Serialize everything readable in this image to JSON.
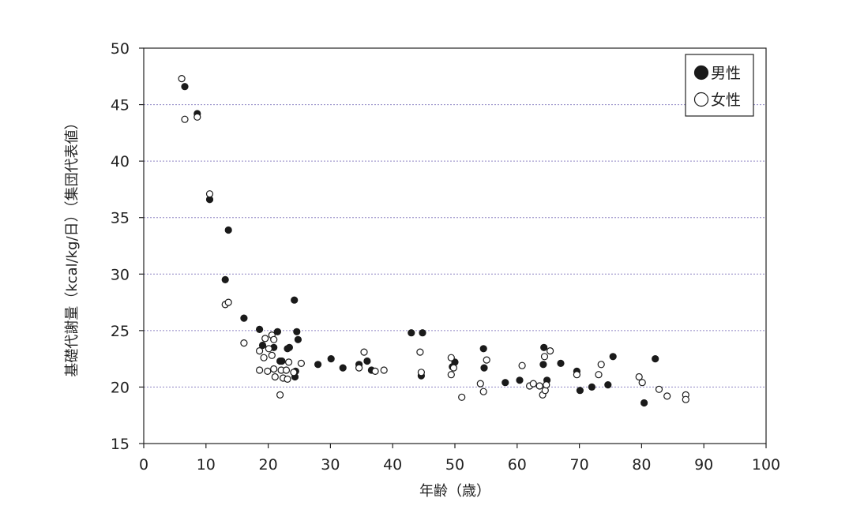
{
  "chart_data": {
    "type": "scatter",
    "xlabel": "年齢（歳）",
    "ylabel": "基礎代謝量（kcal/kg/日）（集団代表値）",
    "xlim": [
      0,
      100
    ],
    "ylim": [
      15,
      50
    ],
    "x_ticks": [
      "0",
      "10",
      "20",
      "30",
      "40",
      "50",
      "60",
      "70",
      "80",
      "90",
      "100"
    ],
    "y_ticks": [
      "15",
      "20",
      "25",
      "30",
      "35",
      "40",
      "45",
      "50"
    ],
    "grid": "horizontal dotted",
    "legend_position": "top-right",
    "series": [
      {
        "name": "男性",
        "marker": "filled-circle",
        "color": "#1a1a1a",
        "points": [
          [
            6.6,
            46.6
          ],
          [
            8.6,
            44.2
          ],
          [
            10.6,
            36.6
          ],
          [
            13.6,
            33.9
          ],
          [
            13.1,
            29.5
          ],
          [
            16.1,
            26.1
          ],
          [
            18.6,
            25.1
          ],
          [
            19.1,
            23.7
          ],
          [
            20.9,
            23.5
          ],
          [
            21.5,
            24.9
          ],
          [
            21.9,
            22.3
          ],
          [
            22.2,
            22.3
          ],
          [
            23.1,
            23.4
          ],
          [
            23.4,
            23.5
          ],
          [
            24.2,
            27.7
          ],
          [
            24.6,
            24.9
          ],
          [
            24.8,
            24.2
          ],
          [
            24.4,
            21.4
          ],
          [
            24.3,
            20.9
          ],
          [
            28.0,
            22.0
          ],
          [
            30.1,
            22.5
          ],
          [
            32.0,
            21.7
          ],
          [
            34.6,
            22.0
          ],
          [
            35.9,
            22.3
          ],
          [
            36.6,
            21.5
          ],
          [
            43.0,
            24.8
          ],
          [
            44.8,
            24.8
          ],
          [
            44.6,
            21.0
          ],
          [
            49.6,
            21.8
          ],
          [
            50.0,
            22.2
          ],
          [
            54.6,
            23.4
          ],
          [
            54.7,
            21.7
          ],
          [
            58.1,
            20.4
          ],
          [
            60.4,
            20.6
          ],
          [
            64.3,
            23.5
          ],
          [
            64.2,
            22.0
          ],
          [
            64.8,
            20.6
          ],
          [
            67.0,
            22.1
          ],
          [
            69.6,
            21.4
          ],
          [
            70.1,
            19.7
          ],
          [
            72.0,
            20.0
          ],
          [
            74.6,
            20.2
          ],
          [
            75.4,
            22.7
          ],
          [
            80.4,
            18.6
          ],
          [
            82.2,
            22.5
          ]
        ]
      },
      {
        "name": "女性",
        "marker": "open-circle",
        "color": "#1a1a1a",
        "points": [
          [
            6.1,
            47.3
          ],
          [
            6.6,
            43.7
          ],
          [
            8.6,
            43.9
          ],
          [
            10.6,
            37.1
          ],
          [
            13.1,
            27.3
          ],
          [
            13.6,
            27.5
          ],
          [
            16.1,
            23.9
          ],
          [
            18.6,
            23.2
          ],
          [
            18.6,
            21.5
          ],
          [
            19.3,
            22.6
          ],
          [
            19.5,
            24.3
          ],
          [
            19.9,
            21.4
          ],
          [
            20.1,
            23.4
          ],
          [
            20.6,
            24.6
          ],
          [
            20.6,
            22.8
          ],
          [
            20.9,
            24.2
          ],
          [
            20.9,
            21.6
          ],
          [
            21.1,
            20.9
          ],
          [
            21.9,
            19.3
          ],
          [
            22.1,
            21.5
          ],
          [
            22.4,
            20.8
          ],
          [
            22.9,
            21.5
          ],
          [
            23.1,
            20.7
          ],
          [
            23.3,
            22.2
          ],
          [
            24.1,
            21.3
          ],
          [
            25.3,
            22.1
          ],
          [
            34.6,
            21.7
          ],
          [
            35.4,
            23.1
          ],
          [
            37.2,
            21.4
          ],
          [
            38.6,
            21.5
          ],
          [
            44.4,
            23.1
          ],
          [
            44.6,
            21.3
          ],
          [
            49.4,
            22.6
          ],
          [
            49.4,
            21.1
          ],
          [
            49.8,
            21.7
          ],
          [
            51.1,
            19.1
          ],
          [
            54.1,
            20.3
          ],
          [
            54.6,
            19.6
          ],
          [
            55.1,
            22.4
          ],
          [
            60.8,
            21.9
          ],
          [
            62.0,
            20.1
          ],
          [
            62.6,
            20.3
          ],
          [
            63.6,
            20.1
          ],
          [
            64.1,
            19.3
          ],
          [
            64.4,
            22.7
          ],
          [
            64.5,
            19.7
          ],
          [
            64.7,
            20.2
          ],
          [
            65.3,
            23.2
          ],
          [
            69.6,
            21.1
          ],
          [
            73.1,
            21.1
          ],
          [
            73.5,
            22.0
          ],
          [
            79.6,
            20.9
          ],
          [
            80.1,
            20.4
          ],
          [
            82.8,
            19.8
          ],
          [
            84.1,
            19.2
          ],
          [
            87.1,
            19.3
          ],
          [
            87.1,
            18.9
          ]
        ]
      }
    ]
  }
}
